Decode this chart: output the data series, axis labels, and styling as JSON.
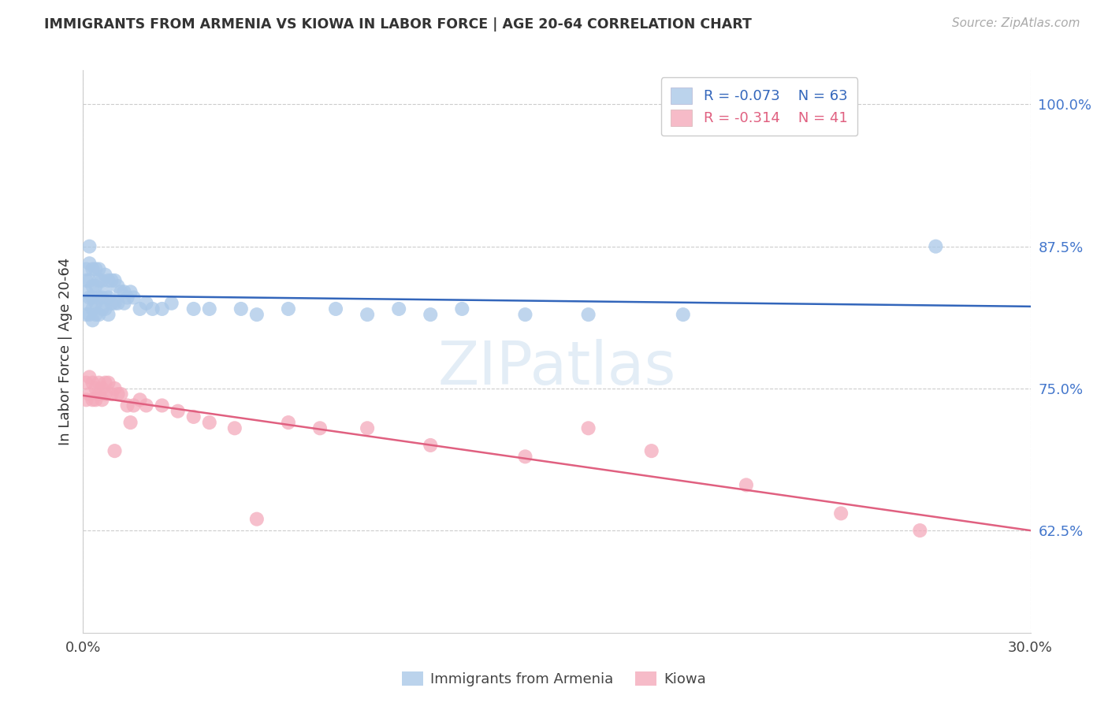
{
  "title": "IMMIGRANTS FROM ARMENIA VS KIOWA IN LABOR FORCE | AGE 20-64 CORRELATION CHART",
  "source": "Source: ZipAtlas.com",
  "ylabel": "In Labor Force | Age 20-64",
  "legend_label_1": "Immigrants from Armenia",
  "legend_label_2": "Kiowa",
  "R1": -0.073,
  "N1": 63,
  "R2": -0.314,
  "N2": 41,
  "xlim": [
    0.0,
    0.3
  ],
  "ylim": [
    0.535,
    1.03
  ],
  "yticks": [
    0.625,
    0.75,
    0.875,
    1.0
  ],
  "ytick_labels": [
    "62.5%",
    "75.0%",
    "87.5%",
    "100.0%"
  ],
  "xticks": [
    0.0,
    0.3
  ],
  "xtick_labels": [
    "0.0%",
    "30.0%"
  ],
  "color_armenia": "#aac8e8",
  "color_kiowa": "#f4aabb",
  "line_color_armenia": "#3366bb",
  "line_color_kiowa": "#e06080",
  "background_color": "#ffffff",
  "watermark": "ZIPatlas",
  "armenia_x": [
    0.001,
    0.001,
    0.001,
    0.001,
    0.001,
    0.002,
    0.002,
    0.002,
    0.002,
    0.002,
    0.003,
    0.003,
    0.003,
    0.003,
    0.003,
    0.004,
    0.004,
    0.004,
    0.004,
    0.005,
    0.005,
    0.005,
    0.005,
    0.006,
    0.006,
    0.006,
    0.007,
    0.007,
    0.007,
    0.008,
    0.008,
    0.008,
    0.009,
    0.009,
    0.01,
    0.01,
    0.011,
    0.011,
    0.012,
    0.013,
    0.013,
    0.014,
    0.015,
    0.016,
    0.018,
    0.02,
    0.022,
    0.025,
    0.028,
    0.035,
    0.04,
    0.05,
    0.055,
    0.065,
    0.08,
    0.09,
    0.1,
    0.11,
    0.12,
    0.14,
    0.16,
    0.19,
    0.27
  ],
  "armenia_y": [
    0.855,
    0.845,
    0.835,
    0.825,
    0.815,
    0.875,
    0.86,
    0.845,
    0.83,
    0.815,
    0.855,
    0.84,
    0.83,
    0.82,
    0.81,
    0.855,
    0.84,
    0.825,
    0.815,
    0.855,
    0.845,
    0.83,
    0.815,
    0.845,
    0.83,
    0.82,
    0.85,
    0.835,
    0.82,
    0.845,
    0.83,
    0.815,
    0.845,
    0.825,
    0.845,
    0.825,
    0.84,
    0.825,
    0.835,
    0.835,
    0.825,
    0.83,
    0.835,
    0.83,
    0.82,
    0.825,
    0.82,
    0.82,
    0.825,
    0.82,
    0.82,
    0.82,
    0.815,
    0.82,
    0.82,
    0.815,
    0.82,
    0.815,
    0.82,
    0.815,
    0.815,
    0.815,
    0.875
  ],
  "kiowa_x": [
    0.001,
    0.001,
    0.002,
    0.002,
    0.003,
    0.003,
    0.004,
    0.004,
    0.005,
    0.005,
    0.006,
    0.006,
    0.007,
    0.007,
    0.008,
    0.009,
    0.01,
    0.011,
    0.012,
    0.014,
    0.016,
    0.018,
    0.02,
    0.025,
    0.03,
    0.035,
    0.04,
    0.048,
    0.065,
    0.075,
    0.09,
    0.11,
    0.14,
    0.16,
    0.18,
    0.21,
    0.24,
    0.265,
    0.01,
    0.015,
    0.055
  ],
  "kiowa_y": [
    0.755,
    0.74,
    0.76,
    0.745,
    0.755,
    0.74,
    0.75,
    0.74,
    0.755,
    0.745,
    0.75,
    0.74,
    0.755,
    0.745,
    0.755,
    0.745,
    0.75,
    0.745,
    0.745,
    0.735,
    0.735,
    0.74,
    0.735,
    0.735,
    0.73,
    0.725,
    0.72,
    0.715,
    0.72,
    0.715,
    0.715,
    0.7,
    0.69,
    0.715,
    0.695,
    0.665,
    0.64,
    0.625,
    0.695,
    0.72,
    0.635
  ]
}
